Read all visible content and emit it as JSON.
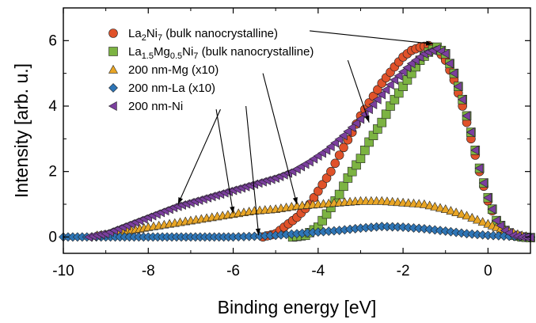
{
  "chart_data": {
    "type": "scatter",
    "xlabel": "Binding energy [eV]",
    "ylabel": "Intensity [arb. u.]",
    "xlim": [
      -10,
      1
    ],
    "ylim": [
      -0.5,
      7
    ],
    "x_ticks": [
      "-10",
      "-8",
      "-6",
      "-4",
      "-2",
      "0"
    ],
    "y_ticks": [
      "0",
      "2",
      "4",
      "6"
    ],
    "grid": false,
    "legend_position": "top-left",
    "series": [
      {
        "name": "La2Ni7 (bulk nanocrystalline)",
        "legend_parts": [
          [
            "La",
            ""
          ],
          [
            "2",
            "sub"
          ],
          [
            "Ni",
            ""
          ],
          [
            "7",
            "sub"
          ],
          [
            " (bulk nanocrystalline)",
            ""
          ]
        ],
        "marker": "circle",
        "color": "#e0522a",
        "points": [
          [
            -5.3,
            0.0
          ],
          [
            -5.0,
            0.1
          ],
          [
            -4.8,
            0.3
          ],
          [
            -4.5,
            0.6
          ],
          [
            -4.2,
            1.0
          ],
          [
            -4.0,
            1.4
          ],
          [
            -3.7,
            2.0
          ],
          [
            -3.5,
            2.5
          ],
          [
            -3.2,
            3.2
          ],
          [
            -3.0,
            3.7
          ],
          [
            -2.7,
            4.3
          ],
          [
            -2.5,
            4.7
          ],
          [
            -2.2,
            5.2
          ],
          [
            -2.0,
            5.5
          ],
          [
            -1.8,
            5.7
          ],
          [
            -1.6,
            5.8
          ],
          [
            -1.4,
            5.85
          ],
          [
            -1.2,
            5.75
          ],
          [
            -1.0,
            5.4
          ],
          [
            -0.8,
            4.8
          ],
          [
            -0.6,
            4.0
          ],
          [
            -0.4,
            3.0
          ],
          [
            -0.2,
            2.0
          ],
          [
            0.0,
            1.1
          ],
          [
            0.2,
            0.5
          ],
          [
            0.4,
            0.2
          ],
          [
            0.6,
            0.05
          ],
          [
            0.8,
            0.0
          ],
          [
            1.0,
            -0.02
          ]
        ]
      },
      {
        "name": "La1.5Mg0.5Ni7 (bulk nanocrystalline)",
        "legend_parts": [
          [
            "La",
            ""
          ],
          [
            "1.5",
            "sub"
          ],
          [
            "Mg",
            ""
          ],
          [
            "0.5",
            "sub"
          ],
          [
            "Ni",
            ""
          ],
          [
            "7",
            "sub"
          ],
          [
            " (bulk nanocrystalline)",
            ""
          ]
        ],
        "marker": "square",
        "color": "#7cb342",
        "points": [
          [
            -4.6,
            0.0
          ],
          [
            -4.3,
            0.05
          ],
          [
            -4.0,
            0.3
          ],
          [
            -3.8,
            0.7
          ],
          [
            -3.5,
            1.3
          ],
          [
            -3.3,
            1.8
          ],
          [
            -3.0,
            2.4
          ],
          [
            -2.8,
            2.9
          ],
          [
            -2.5,
            3.5
          ],
          [
            -2.3,
            4.0
          ],
          [
            -2.0,
            4.6
          ],
          [
            -1.8,
            5.0
          ],
          [
            -1.6,
            5.4
          ],
          [
            -1.4,
            5.65
          ],
          [
            -1.2,
            5.8
          ],
          [
            -1.0,
            5.6
          ],
          [
            -0.8,
            5.0
          ],
          [
            -0.6,
            4.2
          ],
          [
            -0.4,
            3.2
          ],
          [
            -0.2,
            2.1
          ],
          [
            0.0,
            1.2
          ],
          [
            0.2,
            0.5
          ],
          [
            0.4,
            0.2
          ],
          [
            0.6,
            0.05
          ],
          [
            0.8,
            0.0
          ],
          [
            1.0,
            -0.02
          ]
        ]
      },
      {
        "name": "200 nm-Mg (x10)",
        "marker": "triangle",
        "color": "#e8a525",
        "points": [
          [
            -9.2,
            0.05
          ],
          [
            -8.8,
            0.1
          ],
          [
            -8.4,
            0.2
          ],
          [
            -8.0,
            0.3
          ],
          [
            -7.5,
            0.4
          ],
          [
            -7.0,
            0.5
          ],
          [
            -6.5,
            0.6
          ],
          [
            -6.0,
            0.7
          ],
          [
            -5.5,
            0.8
          ],
          [
            -5.0,
            0.85
          ],
          [
            -4.5,
            0.95
          ],
          [
            -4.0,
            1.0
          ],
          [
            -3.5,
            1.05
          ],
          [
            -3.0,
            1.1
          ],
          [
            -2.5,
            1.1
          ],
          [
            -2.0,
            1.05
          ],
          [
            -1.5,
            1.0
          ],
          [
            -1.0,
            0.85
          ],
          [
            -0.5,
            0.65
          ],
          [
            0.0,
            0.4
          ],
          [
            0.4,
            0.2
          ],
          [
            0.8,
            0.05
          ],
          [
            1.0,
            0.0
          ]
        ]
      },
      {
        "name": "200 nm-La (x10)",
        "marker": "diamond",
        "color": "#2e75b6",
        "points": [
          [
            -10.0,
            0.0
          ],
          [
            -9.0,
            0.0
          ],
          [
            -8.0,
            0.0
          ],
          [
            -7.0,
            0.0
          ],
          [
            -6.0,
            0.0
          ],
          [
            -5.5,
            0.02
          ],
          [
            -5.0,
            0.05
          ],
          [
            -4.5,
            0.1
          ],
          [
            -4.0,
            0.15
          ],
          [
            -3.5,
            0.2
          ],
          [
            -3.0,
            0.27
          ],
          [
            -2.5,
            0.32
          ],
          [
            -2.0,
            0.3
          ],
          [
            -1.5,
            0.25
          ],
          [
            -1.0,
            0.18
          ],
          [
            -0.5,
            0.1
          ],
          [
            0.0,
            0.05
          ],
          [
            0.5,
            0.02
          ],
          [
            1.0,
            0.0
          ]
        ]
      },
      {
        "name": "200 nm-Ni",
        "marker": "triangle-left",
        "color": "#7b3f9e",
        "points": [
          [
            -9.4,
            0.0
          ],
          [
            -9.0,
            0.1
          ],
          [
            -8.6,
            0.3
          ],
          [
            -8.2,
            0.5
          ],
          [
            -7.8,
            0.7
          ],
          [
            -7.4,
            0.9
          ],
          [
            -7.0,
            1.05
          ],
          [
            -6.6,
            1.2
          ],
          [
            -6.2,
            1.35
          ],
          [
            -5.8,
            1.5
          ],
          [
            -5.4,
            1.65
          ],
          [
            -5.0,
            1.8
          ],
          [
            -4.6,
            2.0
          ],
          [
            -4.2,
            2.3
          ],
          [
            -3.8,
            2.65
          ],
          [
            -3.4,
            3.1
          ],
          [
            -3.0,
            3.6
          ],
          [
            -2.6,
            4.2
          ],
          [
            -2.2,
            4.8
          ],
          [
            -1.8,
            5.3
          ],
          [
            -1.5,
            5.6
          ],
          [
            -1.2,
            5.75
          ],
          [
            -1.0,
            5.6
          ],
          [
            -0.8,
            5.0
          ],
          [
            -0.6,
            4.2
          ],
          [
            -0.4,
            3.2
          ],
          [
            -0.2,
            2.1
          ],
          [
            0.0,
            1.2
          ],
          [
            0.2,
            0.5
          ],
          [
            0.4,
            0.2
          ],
          [
            0.6,
            0.05
          ],
          [
            0.8,
            0.0
          ],
          [
            1.0,
            -0.02
          ]
        ]
      }
    ],
    "annotation_arrows": [
      {
        "from": [
          -4.2,
          6.3
        ],
        "to": [
          -1.3,
          5.9
        ]
      },
      {
        "from": [
          -3.3,
          5.4
        ],
        "to": [
          -2.8,
          3.5
        ]
      },
      {
        "from": [
          -5.3,
          5.0
        ],
        "to": [
          -4.5,
          1.0
        ]
      },
      {
        "from": [
          -5.7,
          4.0
        ],
        "to": [
          -5.4,
          0.05
        ]
      },
      {
        "from": [
          -6.3,
          3.9
        ],
        "to": [
          -7.3,
          1.0
        ]
      },
      {
        "from": [
          -6.4,
          3.9
        ],
        "to": [
          -6.0,
          0.72
        ]
      }
    ]
  }
}
